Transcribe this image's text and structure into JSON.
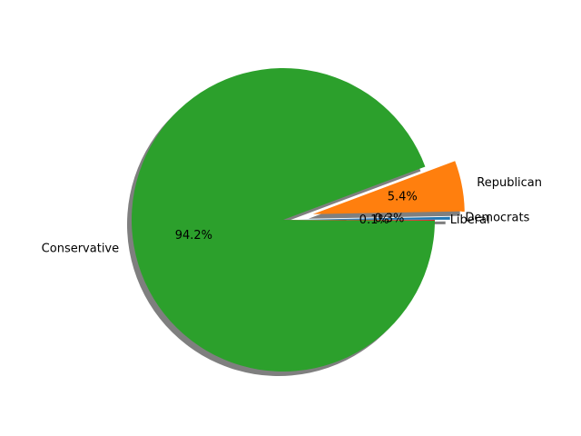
{
  "chart_data": {
    "type": "pie",
    "title": "",
    "labels": [
      "Democrats",
      "Republican",
      "Conservative",
      "Liberal"
    ],
    "values": [
      0.3,
      5.4,
      94.2,
      0.1
    ],
    "percent_labels": [
      "0.3%",
      "5.4%",
      "94.2%",
      "0.1%"
    ],
    "colors": [
      "#1f77b4",
      "#ff7f0e",
      "#2ca02c",
      "#d62728"
    ],
    "explode": [
      0.1,
      0.2,
      0,
      0
    ],
    "start_angle": 0,
    "shadow": true,
    "legend": "none"
  }
}
